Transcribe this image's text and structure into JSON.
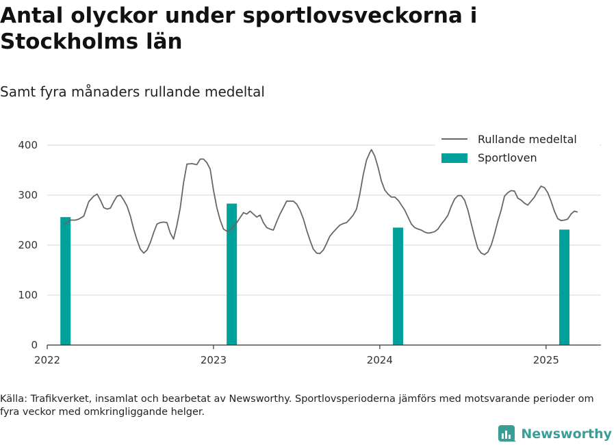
{
  "title": "Antal olyckor under sportlovsveckorna i Stockholms län",
  "subtitle": "Samt fyra månaders rullande medeltal",
  "source": "Källa: Trafikverket, insamlat och bearbetat av Newsworthy. Sportlovsperioderna jämförs med motsvarande perioder om fyra veckor med omkringliggande helger.",
  "brand": "Newsworthy",
  "colors": {
    "line": "#666666",
    "bars": "#00a19a",
    "grid": "#dddddd",
    "brand": "#3a9e96"
  },
  "chart_data": {
    "type": "bar+line",
    "xlim": [
      2022.0,
      2025.33
    ],
    "ylim": [
      0,
      400
    ],
    "x_ticks": [
      2022,
      2023,
      2024,
      2025
    ],
    "y_ticks": [
      0,
      100,
      200,
      300,
      400
    ],
    "grid": true,
    "legend_position": "top-right",
    "series": [
      {
        "name": "Rullande medeltal",
        "type": "line",
        "points": [
          [
            2022.1,
            240
          ],
          [
            2022.14,
            250
          ],
          [
            2022.17,
            250
          ],
          [
            2022.19,
            252
          ],
          [
            2022.22,
            258
          ],
          [
            2022.25,
            287
          ],
          [
            2022.28,
            298
          ],
          [
            2022.3,
            302
          ],
          [
            2022.32,
            290
          ],
          [
            2022.34,
            275
          ],
          [
            2022.36,
            272
          ],
          [
            2022.38,
            274
          ],
          [
            2022.4,
            287
          ],
          [
            2022.42,
            298
          ],
          [
            2022.44,
            300
          ],
          [
            2022.46,
            290
          ],
          [
            2022.48,
            278
          ],
          [
            2022.5,
            258
          ],
          [
            2022.52,
            232
          ],
          [
            2022.54,
            210
          ],
          [
            2022.56,
            192
          ],
          [
            2022.58,
            184
          ],
          [
            2022.6,
            190
          ],
          [
            2022.62,
            205
          ],
          [
            2022.64,
            225
          ],
          [
            2022.66,
            242
          ],
          [
            2022.68,
            245
          ],
          [
            2022.7,
            246
          ],
          [
            2022.72,
            245
          ],
          [
            2022.74,
            224
          ],
          [
            2022.76,
            212
          ],
          [
            2022.78,
            240
          ],
          [
            2022.8,
            275
          ],
          [
            2022.82,
            325
          ],
          [
            2022.84,
            362
          ],
          [
            2022.87,
            363
          ],
          [
            2022.9,
            361
          ],
          [
            2022.92,
            372
          ],
          [
            2022.94,
            372
          ],
          [
            2022.96,
            365
          ],
          [
            2022.98,
            352
          ],
          [
            2023.0,
            310
          ],
          [
            2023.02,
            275
          ],
          [
            2023.04,
            250
          ],
          [
            2023.06,
            232
          ],
          [
            2023.08,
            228
          ],
          [
            2023.1,
            230
          ],
          [
            2023.12,
            237
          ],
          [
            2023.14,
            245
          ],
          [
            2023.16,
            255
          ],
          [
            2023.18,
            265
          ],
          [
            2023.2,
            262
          ],
          [
            2023.22,
            268
          ],
          [
            2023.24,
            262
          ],
          [
            2023.26,
            256
          ],
          [
            2023.28,
            260
          ],
          [
            2023.3,
            245
          ],
          [
            2023.32,
            235
          ],
          [
            2023.34,
            232
          ],
          [
            2023.36,
            230
          ],
          [
            2023.38,
            247
          ],
          [
            2023.4,
            262
          ],
          [
            2023.42,
            275
          ],
          [
            2023.44,
            288
          ],
          [
            2023.46,
            288
          ],
          [
            2023.48,
            288
          ],
          [
            2023.5,
            282
          ],
          [
            2023.52,
            270
          ],
          [
            2023.54,
            253
          ],
          [
            2023.56,
            230
          ],
          [
            2023.58,
            210
          ],
          [
            2023.6,
            192
          ],
          [
            2023.62,
            184
          ],
          [
            2023.64,
            183
          ],
          [
            2023.66,
            190
          ],
          [
            2023.68,
            203
          ],
          [
            2023.7,
            218
          ],
          [
            2023.72,
            226
          ],
          [
            2023.74,
            233
          ],
          [
            2023.76,
            240
          ],
          [
            2023.78,
            243
          ],
          [
            2023.8,
            245
          ],
          [
            2023.82,
            252
          ],
          [
            2023.84,
            260
          ],
          [
            2023.86,
            272
          ],
          [
            2023.88,
            302
          ],
          [
            2023.9,
            340
          ],
          [
            2023.92,
            370
          ],
          [
            2023.94,
            385
          ],
          [
            2023.95,
            391
          ],
          [
            2023.97,
            378
          ],
          [
            2023.99,
            355
          ],
          [
            2024.01,
            328
          ],
          [
            2024.03,
            310
          ],
          [
            2024.05,
            302
          ],
          [
            2024.07,
            296
          ],
          [
            2024.09,
            296
          ],
          [
            2024.11,
            290
          ],
          [
            2024.13,
            280
          ],
          [
            2024.15,
            270
          ],
          [
            2024.17,
            256
          ],
          [
            2024.19,
            242
          ],
          [
            2024.21,
            235
          ],
          [
            2024.23,
            232
          ],
          [
            2024.25,
            230
          ],
          [
            2024.27,
            226
          ],
          [
            2024.29,
            224
          ],
          [
            2024.31,
            225
          ],
          [
            2024.33,
            227
          ],
          [
            2024.35,
            232
          ],
          [
            2024.37,
            242
          ],
          [
            2024.39,
            250
          ],
          [
            2024.41,
            260
          ],
          [
            2024.43,
            278
          ],
          [
            2024.45,
            292
          ],
          [
            2024.47,
            299
          ],
          [
            2024.49,
            299
          ],
          [
            2024.51,
            290
          ],
          [
            2024.53,
            270
          ],
          [
            2024.55,
            243
          ],
          [
            2024.57,
            216
          ],
          [
            2024.59,
            193
          ],
          [
            2024.61,
            184
          ],
          [
            2024.63,
            181
          ],
          [
            2024.65,
            186
          ],
          [
            2024.67,
            200
          ],
          [
            2024.69,
            222
          ],
          [
            2024.71,
            248
          ],
          [
            2024.73,
            270
          ],
          [
            2024.75,
            298
          ],
          [
            2024.77,
            305
          ],
          [
            2024.79,
            309
          ],
          [
            2024.81,
            308
          ],
          [
            2024.83,
            294
          ],
          [
            2024.85,
            290
          ],
          [
            2024.87,
            284
          ],
          [
            2024.89,
            280
          ],
          [
            2024.91,
            288
          ],
          [
            2024.93,
            296
          ],
          [
            2024.95,
            308
          ],
          [
            2024.97,
            318
          ],
          [
            2024.99,
            315
          ],
          [
            2025.01,
            305
          ],
          [
            2025.03,
            288
          ],
          [
            2025.05,
            268
          ],
          [
            2025.07,
            253
          ],
          [
            2025.09,
            249
          ],
          [
            2025.11,
            250
          ],
          [
            2025.13,
            252
          ],
          [
            2025.15,
            262
          ],
          [
            2025.17,
            268
          ],
          [
            2025.19,
            266
          ]
        ]
      },
      {
        "name": "Sportloven",
        "type": "bar",
        "x": [
          2022.11,
          2023.11,
          2024.11,
          2025.11
        ],
        "values": [
          256,
          283,
          235,
          231
        ]
      }
    ]
  }
}
